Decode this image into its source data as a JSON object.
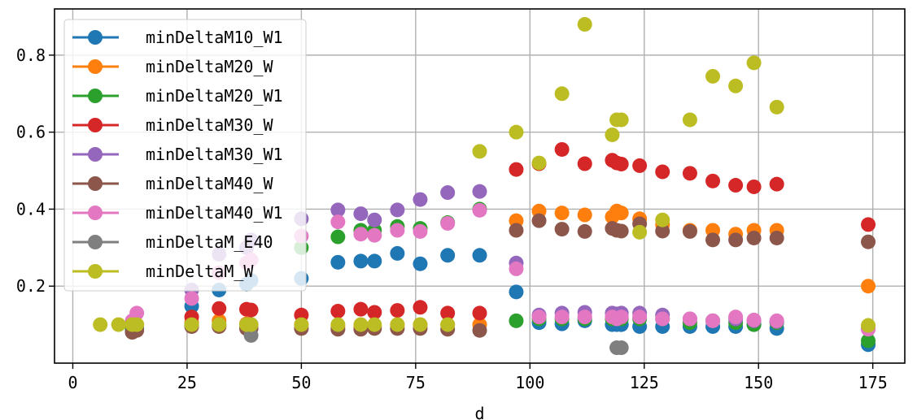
{
  "chart_data": {
    "type": "scatter",
    "title": "",
    "xlabel": "d",
    "ylabel": "",
    "xlim": [
      -4,
      182
    ],
    "ylim": [
      0,
      0.92
    ],
    "xticks": [
      0,
      25,
      50,
      75,
      100,
      125,
      150,
      175
    ],
    "yticks": [
      0.2,
      0.4,
      0.6,
      0.8
    ],
    "ytick_labels": [
      "0.2",
      "0.4",
      "0.6",
      "0.8"
    ],
    "grid": true,
    "legend_position": "upper-left",
    "series": [
      {
        "name": "minDeltaM10_W1",
        "color": "#1f77b4",
        "points": [
          [
            13,
            0.085
          ],
          [
            14,
            0.09
          ],
          [
            26,
            0.148
          ],
          [
            32,
            0.19
          ],
          [
            38,
            0.205
          ],
          [
            39,
            0.215
          ],
          [
            50,
            0.22
          ],
          [
            58,
            0.262
          ],
          [
            63,
            0.265
          ],
          [
            66,
            0.265
          ],
          [
            71,
            0.285
          ],
          [
            76,
            0.258
          ],
          [
            82,
            0.28
          ],
          [
            89,
            0.28
          ],
          [
            97,
            0.185
          ],
          [
            102,
            0.105
          ],
          [
            107,
            0.102
          ],
          [
            112,
            0.11
          ],
          [
            118,
            0.1
          ],
          [
            119,
            0.1
          ],
          [
            120,
            0.1
          ],
          [
            124,
            0.095
          ],
          [
            129,
            0.095
          ],
          [
            135,
            0.095
          ],
          [
            140,
            0.095
          ],
          [
            145,
            0.095
          ],
          [
            149,
            0.1
          ],
          [
            154,
            0.09
          ],
          [
            174,
            0.048
          ]
        ]
      },
      {
        "name": "minDeltaM20_W",
        "color": "#ff7f0e",
        "points": [
          [
            13,
            0.1
          ],
          [
            14,
            0.1
          ],
          [
            26,
            0.105
          ],
          [
            32,
            0.11
          ],
          [
            38,
            0.102
          ],
          [
            39,
            0.1
          ],
          [
            50,
            0.1
          ],
          [
            58,
            0.095
          ],
          [
            63,
            0.095
          ],
          [
            66,
            0.095
          ],
          [
            71,
            0.1
          ],
          [
            76,
            0.1
          ],
          [
            82,
            0.1
          ],
          [
            89,
            0.1
          ],
          [
            97,
            0.37
          ],
          [
            102,
            0.395
          ],
          [
            107,
            0.39
          ],
          [
            112,
            0.385
          ],
          [
            118,
            0.38
          ],
          [
            119,
            0.395
          ],
          [
            120,
            0.39
          ],
          [
            124,
            0.375
          ],
          [
            129,
            0.36
          ],
          [
            135,
            0.345
          ],
          [
            140,
            0.345
          ],
          [
            145,
            0.335
          ],
          [
            149,
            0.345
          ],
          [
            154,
            0.345
          ],
          [
            174,
            0.2
          ]
        ]
      },
      {
        "name": "minDeltaM20_W1",
        "color": "#2ca02c",
        "points": [
          [
            13,
            0.09
          ],
          [
            26,
            0.1
          ],
          [
            32,
            0.1
          ],
          [
            38,
            0.1
          ],
          [
            39,
            0.1
          ],
          [
            50,
            0.3
          ],
          [
            58,
            0.328
          ],
          [
            63,
            0.345
          ],
          [
            66,
            0.345
          ],
          [
            71,
            0.355
          ],
          [
            76,
            0.35
          ],
          [
            82,
            0.365
          ],
          [
            89,
            0.4
          ],
          [
            97,
            0.11
          ],
          [
            102,
            0.115
          ],
          [
            107,
            0.115
          ],
          [
            112,
            0.115
          ],
          [
            118,
            0.115
          ],
          [
            119,
            0.12
          ],
          [
            120,
            0.115
          ],
          [
            124,
            0.115
          ],
          [
            129,
            0.115
          ],
          [
            135,
            0.105
          ],
          [
            140,
            0.11
          ],
          [
            145,
            0.105
          ],
          [
            149,
            0.1
          ],
          [
            154,
            0.105
          ],
          [
            174,
            0.058
          ]
        ]
      },
      {
        "name": "minDeltaM30_W",
        "color": "#d62728",
        "points": [
          [
            13,
            0.1
          ],
          [
            26,
            0.12
          ],
          [
            32,
            0.142
          ],
          [
            38,
            0.14
          ],
          [
            39,
            0.138
          ],
          [
            50,
            0.125
          ],
          [
            58,
            0.135
          ],
          [
            63,
            0.14
          ],
          [
            66,
            0.132
          ],
          [
            71,
            0.137
          ],
          [
            76,
            0.145
          ],
          [
            82,
            0.13
          ],
          [
            89,
            0.13
          ],
          [
            97,
            0.503
          ],
          [
            102,
            0.518
          ],
          [
            107,
            0.555
          ],
          [
            112,
            0.518
          ],
          [
            118,
            0.527
          ],
          [
            119,
            0.52
          ],
          [
            120,
            0.517
          ],
          [
            124,
            0.513
          ],
          [
            129,
            0.497
          ],
          [
            135,
            0.493
          ],
          [
            140,
            0.473
          ],
          [
            145,
            0.462
          ],
          [
            149,
            0.458
          ],
          [
            154,
            0.465
          ],
          [
            174,
            0.36
          ]
        ]
      },
      {
        "name": "minDeltaM30_W1",
        "color": "#9467bd",
        "points": [
          [
            13,
            0.1
          ],
          [
            26,
            0.19
          ],
          [
            32,
            0.283
          ],
          [
            38,
            0.3
          ],
          [
            39,
            0.32
          ],
          [
            50,
            0.375
          ],
          [
            58,
            0.398
          ],
          [
            63,
            0.388
          ],
          [
            66,
            0.372
          ],
          [
            71,
            0.398
          ],
          [
            76,
            0.425
          ],
          [
            82,
            0.443
          ],
          [
            89,
            0.446
          ],
          [
            97,
            0.26
          ],
          [
            102,
            0.125
          ],
          [
            107,
            0.13
          ],
          [
            112,
            0.132
          ],
          [
            118,
            0.13
          ],
          [
            119,
            0.128
          ],
          [
            120,
            0.13
          ],
          [
            124,
            0.13
          ],
          [
            129,
            0.125
          ],
          [
            135,
            0.115
          ],
          [
            140,
            0.11
          ],
          [
            145,
            0.115
          ],
          [
            149,
            0.11
          ],
          [
            154,
            0.108
          ],
          [
            174,
            0.09
          ]
        ]
      },
      {
        "name": "minDeltaM40_W",
        "color": "#8c564b",
        "points": [
          [
            13,
            0.08
          ],
          [
            14,
            0.085
          ],
          [
            26,
            0.095
          ],
          [
            32,
            0.095
          ],
          [
            38,
            0.09
          ],
          [
            39,
            0.09
          ],
          [
            50,
            0.09
          ],
          [
            58,
            0.088
          ],
          [
            63,
            0.088
          ],
          [
            66,
            0.09
          ],
          [
            71,
            0.09
          ],
          [
            76,
            0.09
          ],
          [
            82,
            0.088
          ],
          [
            89,
            0.085
          ],
          [
            97,
            0.345
          ],
          [
            102,
            0.37
          ],
          [
            107,
            0.348
          ],
          [
            112,
            0.342
          ],
          [
            118,
            0.35
          ],
          [
            119,
            0.345
          ],
          [
            120,
            0.343
          ],
          [
            124,
            0.362
          ],
          [
            129,
            0.343
          ],
          [
            135,
            0.342
          ],
          [
            140,
            0.32
          ],
          [
            145,
            0.32
          ],
          [
            149,
            0.325
          ],
          [
            154,
            0.325
          ],
          [
            174,
            0.315
          ]
        ]
      },
      {
        "name": "minDeltaM40_W1",
        "color": "#e377c2",
        "points": [
          [
            13,
            0.11
          ],
          [
            14,
            0.13
          ],
          [
            26,
            0.168
          ],
          [
            32,
            0.235
          ],
          [
            38,
            0.26
          ],
          [
            39,
            0.268
          ],
          [
            50,
            0.33
          ],
          [
            58,
            0.367
          ],
          [
            63,
            0.335
          ],
          [
            66,
            0.332
          ],
          [
            71,
            0.345
          ],
          [
            76,
            0.342
          ],
          [
            82,
            0.363
          ],
          [
            89,
            0.397
          ],
          [
            97,
            0.245
          ],
          [
            102,
            0.12
          ],
          [
            107,
            0.12
          ],
          [
            112,
            0.12
          ],
          [
            118,
            0.12
          ],
          [
            119,
            0.115
          ],
          [
            120,
            0.12
          ],
          [
            124,
            0.12
          ],
          [
            129,
            0.115
          ],
          [
            135,
            0.115
          ],
          [
            140,
            0.11
          ],
          [
            145,
            0.12
          ],
          [
            149,
            0.112
          ],
          [
            154,
            0.11
          ],
          [
            174,
            0.088
          ]
        ]
      },
      {
        "name": "minDeltaM_E40",
        "color": "#7f7f7f",
        "points": [
          [
            39,
            0.072
          ],
          [
            119,
            0.04
          ],
          [
            120,
            0.04
          ]
        ]
      },
      {
        "name": "minDeltaM_W",
        "color": "#bcbd22",
        "points": [
          [
            6,
            0.1
          ],
          [
            10,
            0.1
          ],
          [
            13,
            0.1
          ],
          [
            14,
            0.1
          ],
          [
            26,
            0.1
          ],
          [
            32,
            0.1
          ],
          [
            38,
            0.1
          ],
          [
            39,
            0.1
          ],
          [
            50,
            0.1
          ],
          [
            58,
            0.1
          ],
          [
            63,
            0.1
          ],
          [
            66,
            0.1
          ],
          [
            71,
            0.1
          ],
          [
            76,
            0.1
          ],
          [
            82,
            0.1
          ],
          [
            89,
            0.55
          ],
          [
            97,
            0.6
          ],
          [
            102,
            0.52
          ],
          [
            107,
            0.7
          ],
          [
            112,
            0.88
          ],
          [
            118,
            0.593
          ],
          [
            119,
            0.632
          ],
          [
            120,
            0.632
          ],
          [
            124,
            0.34
          ],
          [
            129,
            0.372
          ],
          [
            135,
            0.632
          ],
          [
            140,
            0.745
          ],
          [
            145,
            0.72
          ],
          [
            149,
            0.78
          ],
          [
            154,
            0.665
          ],
          [
            174,
            0.098
          ]
        ]
      }
    ]
  }
}
